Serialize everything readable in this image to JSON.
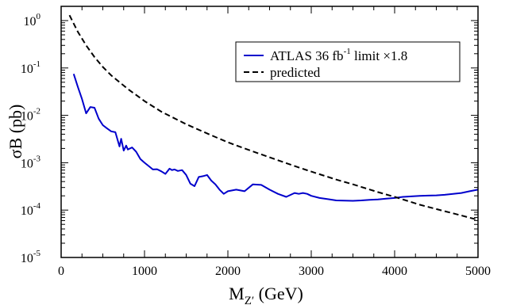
{
  "chart_data": {
    "type": "line",
    "xlabel_main": "M",
    "xlabel_sub": "Z′",
    "xlabel_unit": " (GeV)",
    "ylabel": "σB (pb)",
    "x_scale": "linear",
    "y_scale": "log",
    "xlim": [
      0,
      5000
    ],
    "ylim": [
      1e-05,
      2
    ],
    "x_ticks": [
      {
        "value": 0,
        "label": "0"
      },
      {
        "value": 1000,
        "label": "1000"
      },
      {
        "value": 2000,
        "label": "2000"
      },
      {
        "value": 3000,
        "label": "3000"
      },
      {
        "value": 4000,
        "label": "4000"
      },
      {
        "value": 5000,
        "label": "5000"
      }
    ],
    "y_ticks": [
      {
        "value": 1,
        "base": "10",
        "exp": "0"
      },
      {
        "value": 0.1,
        "base": "10",
        "exp": "-1"
      },
      {
        "value": 0.01,
        "base": "10",
        "exp": "-2"
      },
      {
        "value": 0.001,
        "base": "10",
        "exp": "-3"
      },
      {
        "value": 0.0001,
        "base": "10",
        "exp": "-4"
      },
      {
        "value": 1e-05,
        "base": "10",
        "exp": "-5"
      }
    ],
    "grid": false,
    "legend_position": "top-right",
    "series": [
      {
        "name": "ATLAS 36 fb-1 limit ×1.8",
        "legend_text": "ATLAS 36 fb",
        "legend_sup": "-1",
        "legend_suffix": " limit  ×1.8",
        "color": "#0000cc",
        "dash": "solid",
        "x": [
          150,
          200,
          250,
          300,
          350,
          400,
          450,
          500,
          550,
          600,
          650,
          700,
          720,
          750,
          780,
          800,
          850,
          900,
          950,
          1000,
          1050,
          1100,
          1150,
          1200,
          1250,
          1300,
          1330,
          1360,
          1400,
          1450,
          1500,
          1550,
          1600,
          1650,
          1700,
          1750,
          1800,
          1850,
          1900,
          1950,
          2000,
          2100,
          2200,
          2300,
          2400,
          2500,
          2600,
          2700,
          2800,
          2850,
          2900,
          2950,
          3000,
          3100,
          3200,
          3300,
          3400,
          3500,
          3600,
          3700,
          3800,
          3900,
          4000,
          4100,
          4200,
          4300,
          4400,
          4500,
          4600,
          4700,
          4800,
          4900,
          5000
        ],
        "y": [
          0.075,
          0.04,
          0.022,
          0.011,
          0.015,
          0.0145,
          0.0085,
          0.0062,
          0.0053,
          0.0046,
          0.0044,
          0.0022,
          0.0032,
          0.0018,
          0.0023,
          0.0019,
          0.0021,
          0.0017,
          0.0012,
          0.001,
          0.00085,
          0.00072,
          0.00073,
          0.00066,
          0.00058,
          0.00075,
          0.0007,
          0.00072,
          0.00067,
          0.0007,
          0.00055,
          0.00036,
          0.00032,
          0.0005,
          0.00052,
          0.00055,
          0.00042,
          0.00035,
          0.00027,
          0.00022,
          0.00025,
          0.00027,
          0.00025,
          0.00035,
          0.00034,
          0.00027,
          0.00022,
          0.00019,
          0.00023,
          0.00022,
          0.00023,
          0.00022,
          0.0002,
          0.00018,
          0.00017,
          0.00016,
          0.000158,
          0.000157,
          0.00016,
          0.000165,
          0.000168,
          0.000175,
          0.00018,
          0.00019,
          0.000195,
          0.0002,
          0.000202,
          0.000205,
          0.00021,
          0.00022,
          0.00023,
          0.00025,
          0.00027
        ]
      },
      {
        "name": "predicted",
        "legend_text": "predicted",
        "legend_sup": "",
        "legend_suffix": "",
        "color": "#000000",
        "dash": "dashed",
        "x": [
          100,
          200,
          300,
          400,
          500,
          600,
          800,
          1000,
          1200,
          1500,
          1800,
          2000,
          2200,
          2500,
          2800,
          3000,
          3300,
          3500,
          3800,
          4000,
          4300,
          4500,
          4800,
          5000
        ],
        "y": [
          1.3,
          0.58,
          0.3,
          0.17,
          0.105,
          0.07,
          0.036,
          0.02,
          0.012,
          0.0065,
          0.0038,
          0.0027,
          0.002,
          0.0013,
          0.00085,
          0.00065,
          0.00044,
          0.00035,
          0.00024,
          0.00019,
          0.00013,
          0.000105,
          7.7e-05,
          6.2e-05
        ]
      }
    ]
  }
}
